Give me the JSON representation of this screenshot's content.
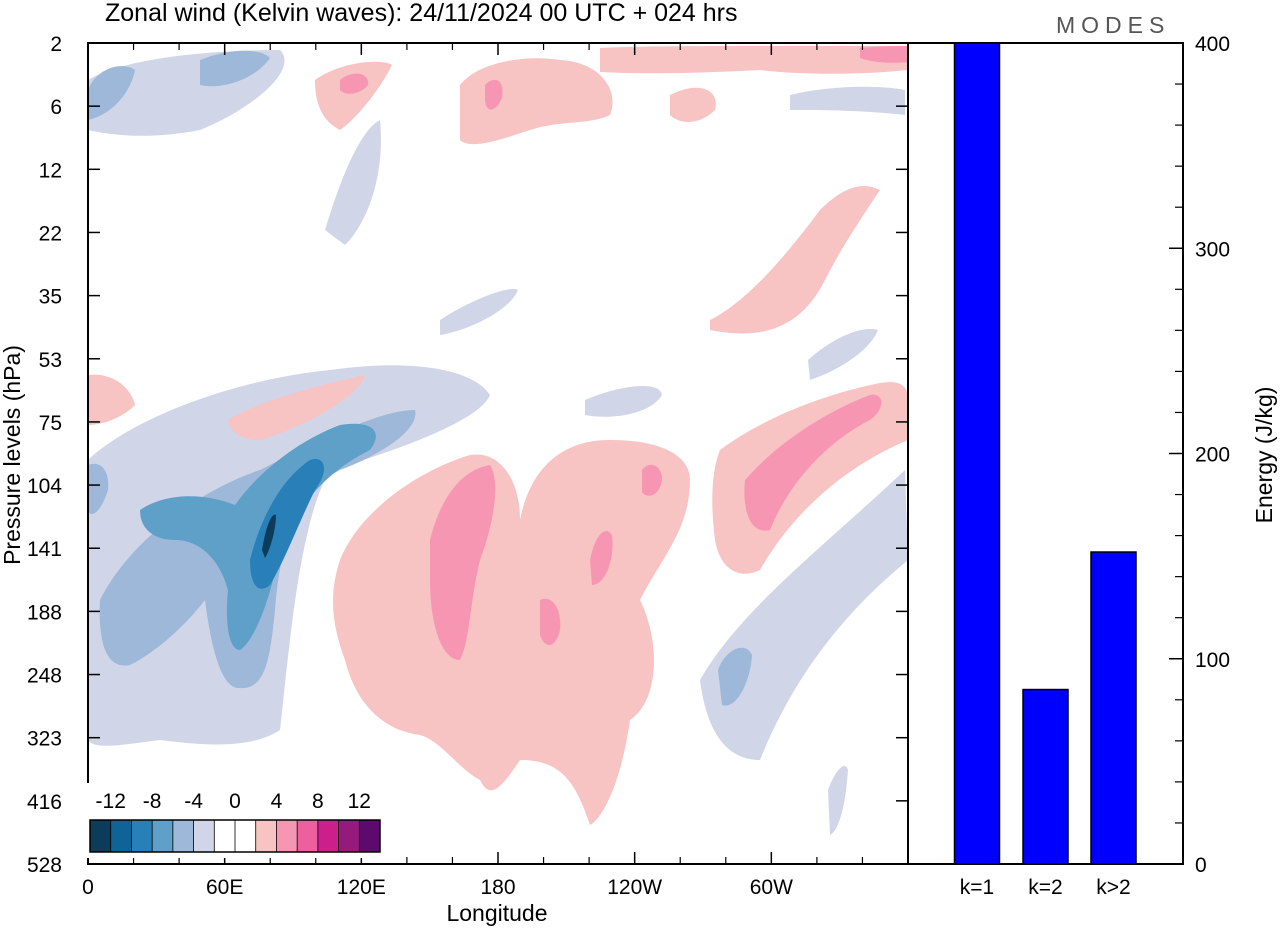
{
  "title": "Zonal wind (Kelvin waves):  24/11/2024  00 UTC  + 024 hrs",
  "brand": "MODES",
  "chart_data": [
    {
      "type": "heatmap",
      "xlabel": "Longitude",
      "ylabel": "Pressure levels (hPa)",
      "x_ticks": [
        "0",
        "60E",
        "120E",
        "180",
        "120W",
        "60W"
      ],
      "y_ticks": [
        "2",
        "6",
        "12",
        "22",
        "35",
        "53",
        "75",
        "104",
        "141",
        "188",
        "248",
        "323",
        "416",
        "528"
      ],
      "colorbar": {
        "tick_labels": [
          "-12",
          "-8",
          "-4",
          "0",
          "4",
          "8",
          "12"
        ],
        "colors": [
          "#0c3c5a",
          "#0f6497",
          "#2980b9",
          "#5fa0c8",
          "#9db8d8",
          "#d1d5e8",
          "#ffffff",
          "#ffffff",
          "#f7c3c3",
          "#f796b3",
          "#ee5f9e",
          "#cc1f8c",
          "#961a7e",
          "#5c0a6e"
        ]
      },
      "features": [
        {
          "sign": "negative",
          "label": "westward-tilted easterly band 188-75 hPa, 30E-120E",
          "peak": -12
        },
        {
          "sign": "positive",
          "label": "westerly band 141-416 hPa, 150E-120W",
          "peak": 6
        },
        {
          "sign": "positive",
          "label": "westerly band 75-141 hPa, 75W-0",
          "peak": 6
        },
        {
          "sign": "negative",
          "label": "easterly band 248-323 hPa, 65W-40W",
          "peak": -4
        }
      ]
    },
    {
      "type": "bar",
      "categories": [
        "k=1",
        "k=2",
        "k>2"
      ],
      "values": [
        400,
        85,
        152
      ],
      "ylabel": "Energy (J/kg)",
      "ylim": [
        0,
        400
      ],
      "y_ticks": [
        "0",
        "100",
        "200",
        "300",
        "400"
      ],
      "bar_color": "#0000ff"
    }
  ]
}
